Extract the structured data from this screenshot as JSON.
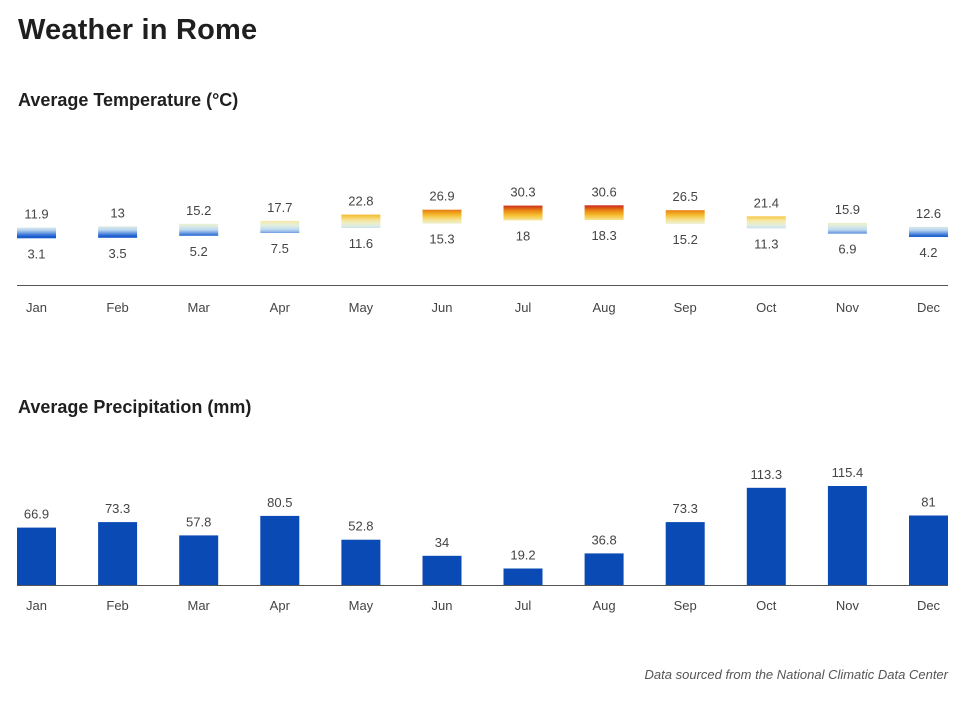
{
  "page": {
    "title": "Weather in Rome"
  },
  "colors": {
    "axis": "#555555",
    "precip_bar": "#0a4ab5"
  },
  "gradient_stops": [
    {
      "t": -5,
      "color": "#0033aa"
    },
    {
      "t": 5,
      "color": "#1b5fd0"
    },
    {
      "t": 10,
      "color": "#bdd8f2"
    },
    {
      "t": 14,
      "color": "#e4f1de"
    },
    {
      "t": 18,
      "color": "#f7e7a2"
    },
    {
      "t": 22,
      "color": "#f6c233"
    },
    {
      "t": 26,
      "color": "#ea8a12"
    },
    {
      "t": 31,
      "color": "#c81e1e"
    }
  ],
  "chart_data": [
    {
      "type": "bar",
      "subtype": "floating-range",
      "title": "Average Temperature (°C)",
      "categories": [
        "Jan",
        "Feb",
        "Mar",
        "Apr",
        "May",
        "Jun",
        "Jul",
        "Aug",
        "Sep",
        "Oct",
        "Nov",
        "Dec"
      ],
      "series": [
        {
          "name": "",
          "role": "high",
          "values": [
            11.9,
            13,
            15.2,
            17.7,
            22.8,
            26.9,
            30.3,
            30.6,
            26.5,
            21.4,
            15.9,
            12.6
          ]
        },
        {
          "name": "",
          "role": "low",
          "values": [
            3.1,
            3.5,
            5.2,
            7.5,
            11.6,
            15.3,
            18,
            18.3,
            15.2,
            11.3,
            6.9,
            4.2
          ]
        }
      ],
      "xlabel": "",
      "ylabel": "",
      "grid": false,
      "legend": "none"
    },
    {
      "type": "bar",
      "title": "Average Precipitation (mm)",
      "categories": [
        "Jan",
        "Feb",
        "Mar",
        "Apr",
        "May",
        "Jun",
        "Jul",
        "Aug",
        "Sep",
        "Oct",
        "Nov",
        "Dec"
      ],
      "values": [
        66.9,
        73.3,
        57.8,
        80.5,
        52.8,
        34,
        19.2,
        36.8,
        73.3,
        113.3,
        115.4,
        81
      ],
      "ylim": [
        0,
        115.4
      ],
      "xlabel": "",
      "ylabel": "",
      "grid": false,
      "legend": "none"
    }
  ],
  "footer": {
    "note": "Data sourced from the National Climatic Data Center"
  }
}
